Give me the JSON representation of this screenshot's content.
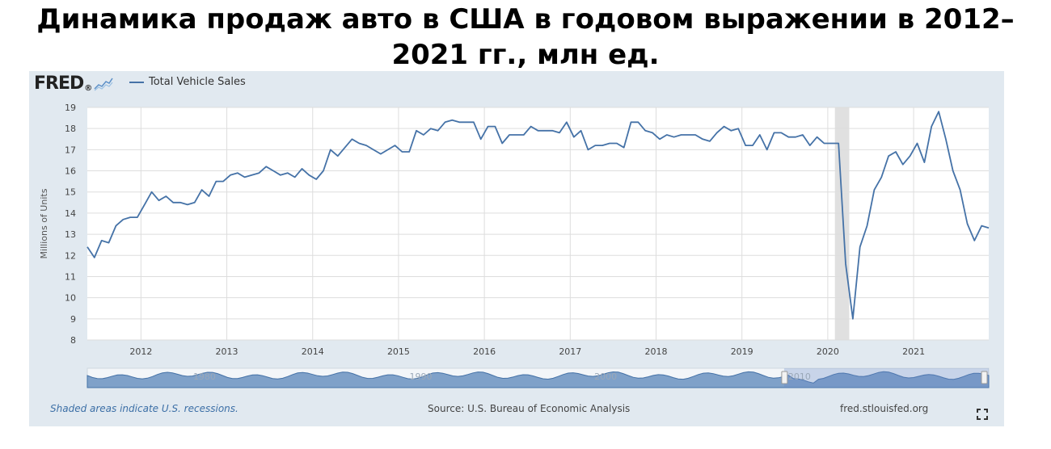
{
  "page_title": "Динамика продаж авто в США в годовом выражении в 2012–2021 гг., млн ед.",
  "logo": {
    "text": "FRED",
    "icon": "fred-graph-icon"
  },
  "legend": {
    "series_name": "Total Vehicle Sales"
  },
  "footer": {
    "recession_note": "Shaded areas indicate U.S. recessions.",
    "source": "Source: U.S. Bureau of Economic Analysis",
    "site": "fred.stlouisfed.org"
  },
  "colors": {
    "line": "#4572a7",
    "panel": "#e1e9f0",
    "recession": "#e0e0e0",
    "grid": "#dddddd"
  },
  "chart_data": {
    "type": "line",
    "ylabel": "Millions of Units",
    "xlabel": "",
    "ylim": [
      8,
      19
    ],
    "yticks": [
      8,
      9,
      10,
      11,
      12,
      13,
      14,
      15,
      16,
      17,
      18,
      19
    ],
    "xlim": [
      2011.375,
      2021.875
    ],
    "xticks": [
      2012,
      2013,
      2014,
      2015,
      2016,
      2017,
      2018,
      2019,
      2020,
      2021
    ],
    "xtick_labels": [
      "2012",
      "2013",
      "2014",
      "2015",
      "2016",
      "2017",
      "2018",
      "2019",
      "2020",
      "2021"
    ],
    "grid": true,
    "recession": [
      2020.083,
      2020.25
    ],
    "series": [
      {
        "name": "Total Vehicle Sales",
        "x": [
          2011.375,
          2011.458,
          2011.542,
          2011.625,
          2011.708,
          2011.792,
          2011.875,
          2011.958,
          2012.042,
          2012.125,
          2012.208,
          2012.292,
          2012.375,
          2012.458,
          2012.542,
          2012.625,
          2012.708,
          2012.792,
          2012.875,
          2012.958,
          2013.042,
          2013.125,
          2013.208,
          2013.292,
          2013.375,
          2013.458,
          2013.542,
          2013.625,
          2013.708,
          2013.792,
          2013.875,
          2013.958,
          2014.042,
          2014.125,
          2014.208,
          2014.292,
          2014.375,
          2014.458,
          2014.542,
          2014.625,
          2014.708,
          2014.792,
          2014.875,
          2014.958,
          2015.042,
          2015.125,
          2015.208,
          2015.292,
          2015.375,
          2015.458,
          2015.542,
          2015.625,
          2015.708,
          2015.792,
          2015.875,
          2015.958,
          2016.042,
          2016.125,
          2016.208,
          2016.292,
          2016.375,
          2016.458,
          2016.542,
          2016.625,
          2016.708,
          2016.792,
          2016.875,
          2016.958,
          2017.042,
          2017.125,
          2017.208,
          2017.292,
          2017.375,
          2017.458,
          2017.542,
          2017.625,
          2017.708,
          2017.792,
          2017.875,
          2017.958,
          2018.042,
          2018.125,
          2018.208,
          2018.292,
          2018.375,
          2018.458,
          2018.542,
          2018.625,
          2018.708,
          2018.792,
          2018.875,
          2018.958,
          2019.042,
          2019.125,
          2019.208,
          2019.292,
          2019.375,
          2019.458,
          2019.542,
          2019.625,
          2019.708,
          2019.792,
          2019.875,
          2019.958,
          2020.042,
          2020.125,
          2020.208,
          2020.292,
          2020.375,
          2020.458,
          2020.542,
          2020.625,
          2020.708,
          2020.792,
          2020.875,
          2020.958,
          2021.042,
          2021.125,
          2021.208,
          2021.292,
          2021.375,
          2021.458,
          2021.542,
          2021.625,
          2021.708,
          2021.792,
          2021.875
        ],
        "values": [
          12.4,
          11.9,
          12.7,
          12.6,
          13.4,
          13.7,
          13.8,
          13.8,
          14.4,
          15.0,
          14.6,
          14.8,
          14.5,
          14.5,
          14.4,
          14.5,
          15.1,
          14.8,
          15.5,
          15.5,
          15.8,
          15.9,
          15.7,
          15.8,
          15.9,
          16.2,
          16.0,
          15.8,
          15.9,
          15.7,
          16.1,
          15.8,
          15.6,
          16.0,
          17.0,
          16.7,
          17.1,
          17.5,
          17.3,
          17.2,
          17.0,
          16.8,
          17.0,
          17.2,
          16.9,
          16.9,
          17.9,
          17.7,
          18.0,
          17.9,
          18.3,
          18.4,
          18.3,
          18.3,
          18.3,
          17.5,
          18.1,
          18.1,
          17.3,
          17.7,
          17.7,
          17.7,
          18.1,
          17.9,
          17.9,
          17.9,
          17.8,
          18.3,
          17.6,
          17.9,
          17.0,
          17.2,
          17.2,
          17.3,
          17.3,
          17.1,
          18.3,
          18.3,
          17.9,
          17.8,
          17.5,
          17.7,
          17.6,
          17.7,
          17.7,
          17.7,
          17.5,
          17.4,
          17.8,
          18.1,
          17.9,
          18.0,
          17.2,
          17.2,
          17.7,
          17.0,
          17.8,
          17.8,
          17.6,
          17.6,
          17.7,
          17.2,
          17.6,
          17.3,
          17.3,
          17.3,
          11.6,
          9.0,
          12.4,
          13.4,
          15.1,
          15.7,
          16.7,
          16.9,
          16.3,
          16.7,
          17.3,
          16.4,
          18.1,
          18.8,
          17.5,
          16.0,
          15.1,
          13.5,
          12.7,
          13.4,
          13.3
        ]
      }
    ],
    "navigator": {
      "x_tick_labels": [
        "1980",
        "1990",
        "2000",
        "2010"
      ]
    }
  }
}
